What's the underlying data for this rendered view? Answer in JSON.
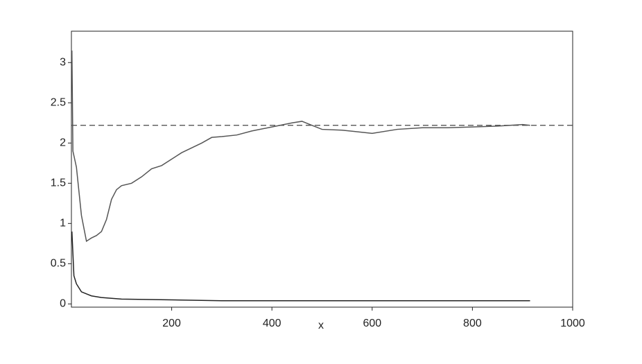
{
  "chart_data": {
    "type": "line",
    "x_label": "x",
    "series": [
      {
        "color": "#555555",
        "x": [
          1,
          3,
          10,
          20,
          30,
          40,
          50,
          60,
          70,
          80,
          90,
          100,
          120,
          140,
          160,
          180,
          200,
          220,
          260,
          280,
          300,
          330,
          360,
          400,
          440,
          460,
          480,
          500,
          540,
          600,
          650,
          700,
          750,
          800,
          850,
          900,
          915
        ],
        "values": [
          3.15,
          1.9,
          1.7,
          1.1,
          0.78,
          0.82,
          0.85,
          0.9,
          1.05,
          1.3,
          1.42,
          1.47,
          1.5,
          1.58,
          1.68,
          1.72,
          1.8,
          1.88,
          2.0,
          2.07,
          2.08,
          2.1,
          2.15,
          2.2,
          2.25,
          2.27,
          2.22,
          2.17,
          2.16,
          2.12,
          2.17,
          2.19,
          2.19,
          2.2,
          2.21,
          2.23,
          2.22
        ]
      },
      {
        "color": "#222222",
        "x": [
          1,
          5,
          10,
          20,
          40,
          60,
          100,
          200,
          300,
          915
        ],
        "values": [
          0.9,
          0.35,
          0.25,
          0.15,
          0.1,
          0.08,
          0.06,
          0.05,
          0.04,
          0.04
        ]
      }
    ],
    "reference_line": {
      "value": 2.22,
      "dashed": true,
      "color": "#444444"
    },
    "xlim": [
      0,
      1000
    ],
    "ylim": [
      -0.04,
      3.39
    ],
    "xticks": [
      200,
      400,
      600,
      800,
      1000
    ],
    "yticks": [
      0,
      0.5,
      1,
      1.5,
      2,
      2.5,
      3
    ],
    "grid": false
  }
}
